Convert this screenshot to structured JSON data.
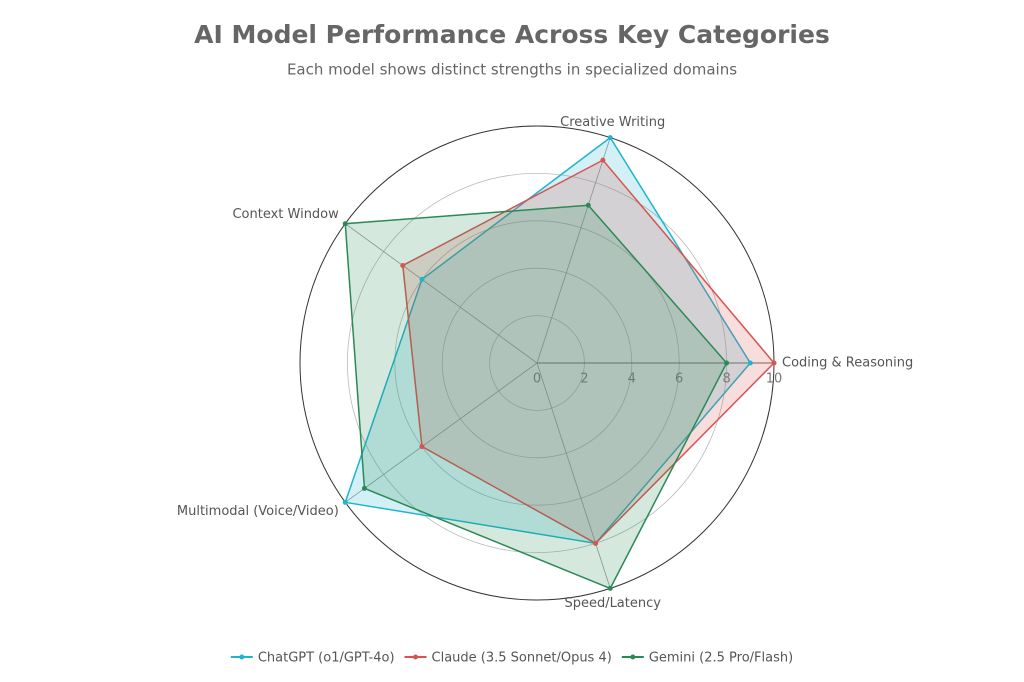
{
  "chart_data": {
    "type": "radar",
    "title": "AI Model Performance Across Key Categories",
    "subtitle": "Each model shows distinct strengths in specialized domains",
    "categories": [
      "Coding & Reasoning",
      "Creative Writing",
      "Context Window",
      "Multimodal (Voice/Video)",
      "Speed/Latency"
    ],
    "series": [
      {
        "name": "ChatGPT (o1/GPT-4o)",
        "color": "#1fb5cc",
        "values": [
          9,
          10,
          6,
          10,
          8
        ]
      },
      {
        "name": "Claude (3.5 Sonnet/Opus 4)",
        "color": "#d9534f",
        "values": [
          10,
          9,
          7,
          6,
          8
        ]
      },
      {
        "name": "Gemini (2.5 Pro/Flash)",
        "color": "#2a8a55",
        "values": [
          8,
          7,
          10,
          9,
          10
        ]
      }
    ],
    "rlim": [
      0,
      10
    ],
    "rticks": [
      0,
      2,
      4,
      6,
      8,
      10
    ],
    "grid": true,
    "legend": "bottom"
  }
}
